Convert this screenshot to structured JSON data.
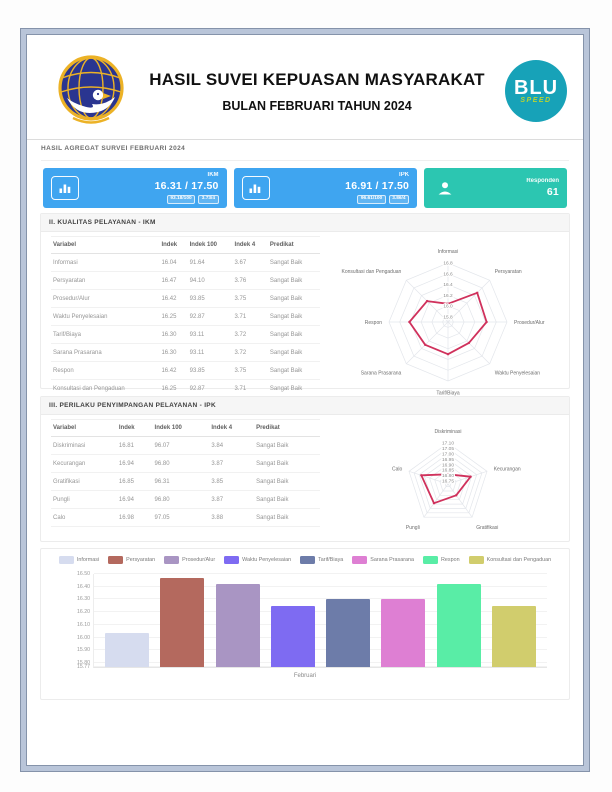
{
  "header": {
    "title1": "HASIL SUVEI KEPUASAN MASYARAKAT",
    "title2": "BULAN FEBRUARI TAHUN 2024",
    "logo_left_name": "kementerian-perhubungan-logo",
    "logo_right_text": "BLU",
    "logo_right_sub": "SPEED"
  },
  "aggregate_label": "HASIL AGREGAT SURVEI FEBRUARI 2024",
  "stats": [
    {
      "label": "IKM",
      "value": "16.31 / 17.50",
      "badges": [
        "93.18/100",
        "3.73/4"
      ],
      "color": "#3fa5f0",
      "icon": "bar-chart-icon"
    },
    {
      "label": "IPK",
      "value": "16.91 / 17.50",
      "badges": [
        "96.61/100",
        "3.86/4"
      ],
      "color": "#3fa5f0",
      "icon": "bar-chart-icon"
    },
    {
      "label": "Responden",
      "value": "61",
      "badges": [],
      "color": "#2cc6b1",
      "icon": "person-icon"
    }
  ],
  "section_ikm": {
    "title": "II. KUALITAS PELAYANAN - IKM",
    "headers": [
      "Variabel",
      "Indek",
      "Indek 100",
      "Indek 4",
      "Predikat"
    ],
    "rows": [
      [
        "Informasi",
        "16.04",
        "91.64",
        "3.67",
        "Sangat Baik"
      ],
      [
        "Persyaratan",
        "16.47",
        "94.10",
        "3.76",
        "Sangat Baik"
      ],
      [
        "Prosedur/Alur",
        "16.42",
        "93.85",
        "3.75",
        "Sangat Baik"
      ],
      [
        "Waktu Penyelesaian",
        "16.25",
        "92.87",
        "3.71",
        "Sangat Baik"
      ],
      [
        "Tarif/Biaya",
        "16.30",
        "93.11",
        "3.72",
        "Sangat Baik"
      ],
      [
        "Sarana Prasarana",
        "16.30",
        "93.11",
        "3.72",
        "Sangat Baik"
      ],
      [
        "Respon",
        "16.42",
        "93.85",
        "3.75",
        "Sangat Baik"
      ],
      [
        "Konsultasi dan Pengaduan",
        "16.25",
        "92.87",
        "3.71",
        "Sangat Baik"
      ]
    ]
  },
  "section_ipk": {
    "title": "III. PERILAKU PENYIMPANGAN PELAYANAN - IPK",
    "headers": [
      "Variabel",
      "Indek",
      "Indek 100",
      "Indek 4",
      "Predikat"
    ],
    "rows": [
      [
        "Diskriminasi",
        "16.81",
        "96.07",
        "3.84",
        "Sangat Baik"
      ],
      [
        "Kecurangan",
        "16.94",
        "96.80",
        "3.87",
        "Sangat Baik"
      ],
      [
        "Gratifikasi",
        "16.85",
        "96.31",
        "3.85",
        "Sangat Baik"
      ],
      [
        "Pungli",
        "16.94",
        "96.80",
        "3.87",
        "Sangat Baik"
      ],
      [
        "Calo",
        "16.98",
        "97.05",
        "3.88",
        "Sangat Baik"
      ]
    ]
  },
  "chart_data": [
    {
      "id": "radar_ikm",
      "type": "radar",
      "categories": [
        "Informasi",
        "Persyaratan",
        "Prosedur/Alur",
        "Waktu Penyelesaian",
        "Tarif/Biaya",
        "Sarana Prasarana",
        "Respon",
        "Konsultasi dan Pengaduan"
      ],
      "values": [
        16.04,
        16.47,
        16.42,
        16.25,
        16.3,
        16.3,
        16.42,
        16.25
      ],
      "ticks": [
        "16.8",
        "16.6",
        "16.4",
        "16.2",
        "16.0",
        "15.8"
      ],
      "scale_min": 15.7,
      "scale_max": 16.8,
      "line_color": "#d0315c",
      "grid": "polygon-web",
      "legend": "none"
    },
    {
      "id": "radar_ipk",
      "type": "radar",
      "categories": [
        "Diskriminasi",
        "Kecurangan",
        "Gratifikasi",
        "Pungli",
        "Calo"
      ],
      "values": [
        16.81,
        16.94,
        16.85,
        16.94,
        16.98
      ],
      "ticks": [
        "17.10",
        "17.05",
        "17.00",
        "16.95",
        "16.90",
        "16.85",
        "16.80",
        "16.75"
      ],
      "scale_min": 16.72,
      "scale_max": 17.1,
      "line_color": "#d0315c",
      "grid": "polygon-web",
      "legend": "none"
    },
    {
      "id": "bar_februari",
      "type": "bar",
      "categories": [
        "Informasi",
        "Persyaratan",
        "Prosedur/Alur",
        "Waktu Penyelesaian",
        "Tarif/Biaya",
        "Sarana Prasarana",
        "Respon",
        "Konsultasi dan Pengaduan"
      ],
      "values": [
        16.04,
        16.47,
        16.42,
        16.25,
        16.3,
        16.3,
        16.42,
        16.25
      ],
      "colors": [
        "#d6dcef",
        "#b4695e",
        "#a995c3",
        "#7e6bf2",
        "#6d7ca9",
        "#de7fd3",
        "#59eda6",
        "#d1cd6d"
      ],
      "x_label": "Februari",
      "yticks": [
        "16.50",
        "16.40",
        "16.30",
        "16.20",
        "16.10",
        "16.00",
        "15.90",
        "15.80",
        "15.77"
      ],
      "ymin": 15.77,
      "ymax": 16.5,
      "legend_position": "top",
      "grid": true
    }
  ]
}
